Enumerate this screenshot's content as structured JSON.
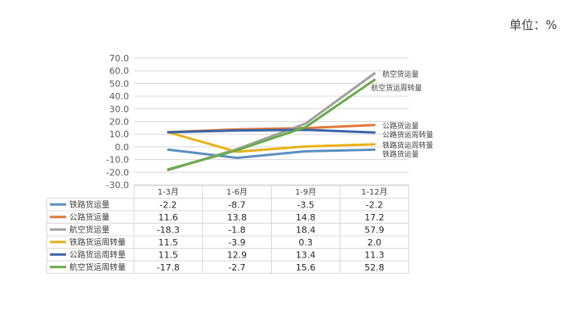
{
  "unit_label": "单位：%",
  "chart_data": {
    "type": "line",
    "categories": [
      "1-3月",
      "1-6月",
      "1-9月",
      "1-12月"
    ],
    "ylim": [
      -30,
      70
    ],
    "yticks": [
      "70.0",
      "60.0",
      "50.0",
      "40.0",
      "30.0",
      "20.0",
      "10.0",
      "0.0",
      "-10.0",
      "-20.0",
      "-30.0"
    ],
    "grid": true,
    "legend": "data-table-below",
    "series": [
      {
        "name": "铁路货运量",
        "values": [
          -2.2,
          -8.7,
          -3.5,
          -2.2
        ],
        "color": "#5b8fc0",
        "table": [
          "-2.2",
          "-8.7",
          "-3.5",
          "-2.2"
        ]
      },
      {
        "name": "公路货运量",
        "values": [
          11.6,
          13.8,
          14.8,
          17.2
        ],
        "color": "#e07a3c",
        "table": [
          "11.6",
          "13.8",
          "14.8",
          "17.2"
        ]
      },
      {
        "name": "航空货运量",
        "values": [
          -18.3,
          -1.8,
          18.4,
          57.9
        ],
        "color": "#a0a0a0",
        "table": [
          "-18.3",
          "-1.8",
          "18.4",
          "57.9"
        ]
      },
      {
        "name": "铁路货运周转量",
        "values": [
          11.5,
          -3.9,
          0.3,
          2.0
        ],
        "color": "#e8b215",
        "table": [
          "11.5",
          "-3.9",
          "0.3",
          "2.0"
        ]
      },
      {
        "name": "公路货运周转量",
        "values": [
          11.5,
          12.9,
          13.4,
          11.3
        ],
        "color": "#3d64a8",
        "table": [
          "11.5",
          "12.9",
          "13.4",
          "11.3"
        ]
      },
      {
        "name": "航空货运周转量",
        "values": [
          -17.8,
          -2.7,
          15.6,
          52.8
        ],
        "color": "#6aab4a",
        "table": [
          "-17.8",
          "-2.7",
          "15.6",
          "52.8"
        ]
      }
    ]
  }
}
